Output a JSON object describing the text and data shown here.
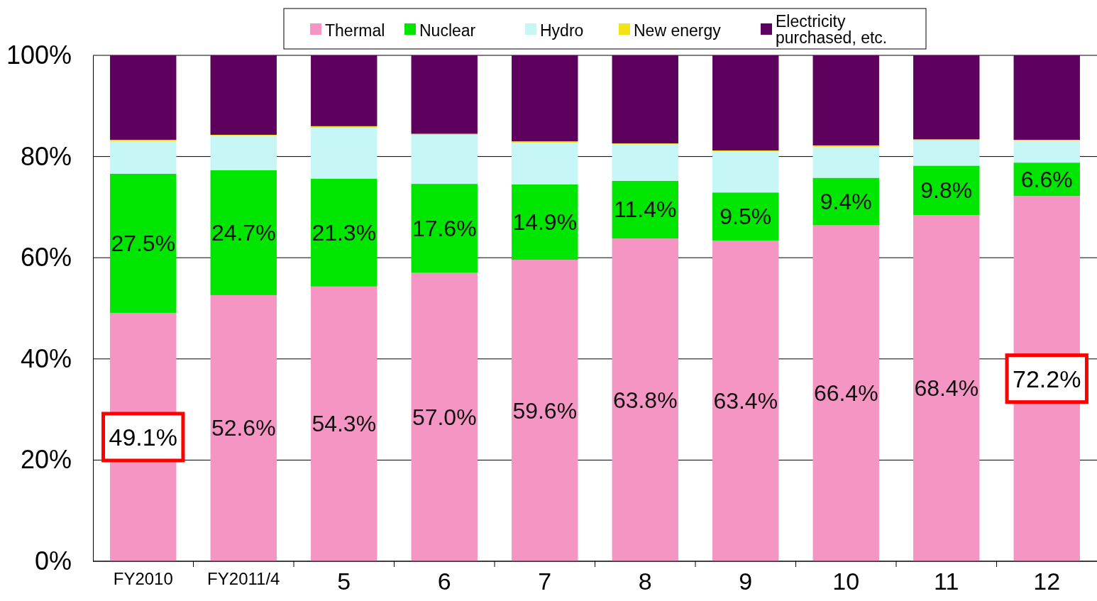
{
  "chart_data": {
    "type": "bar",
    "stacked": true,
    "categories": [
      "FY2010",
      "FY2011/4",
      "5",
      "6",
      "7",
      "8",
      "9",
      "10",
      "11",
      "12"
    ],
    "series": [
      {
        "name": "Thermal",
        "color": "#f595c4",
        "values": [
          49.1,
          52.6,
          54.3,
          57.0,
          59.6,
          63.8,
          63.4,
          66.4,
          68.4,
          72.2
        ],
        "value_labels": [
          null,
          "52.6%",
          "54.3%",
          "57.0%",
          "59.6%",
          "63.8%",
          "63.4%",
          "66.4%",
          "68.4%",
          null
        ]
      },
      {
        "name": "Nuclear",
        "color": "#00e600",
        "values": [
          27.5,
          24.7,
          21.3,
          17.6,
          14.9,
          11.4,
          9.5,
          9.4,
          9.8,
          6.6
        ],
        "value_labels": [
          "27.5%",
          "24.7%",
          "21.3%",
          "17.6%",
          "14.9%",
          "11.4%",
          "9.5%",
          "9.4%",
          "9.8%",
          "6.6%"
        ]
      },
      {
        "name": "Hydro",
        "color": "#c6f6f6",
        "values": [
          6.4,
          6.8,
          10.1,
          9.7,
          8.2,
          7.2,
          8.1,
          6.1,
          5.0,
          4.3
        ]
      },
      {
        "name": "New energy",
        "color": "#f2e21a",
        "values": [
          0.3,
          0.2,
          0.3,
          0.2,
          0.3,
          0.2,
          0.2,
          0.3,
          0.2,
          0.2
        ]
      },
      {
        "name": "Electricity purchased, etc.",
        "color": "#5e005e",
        "values": [
          16.7,
          15.7,
          14.0,
          15.5,
          17.0,
          17.4,
          18.8,
          17.8,
          16.6,
          16.7
        ]
      }
    ],
    "ylim": [
      0,
      100
    ],
    "yticks": [
      {
        "value": 0,
        "label": "0%"
      },
      {
        "value": 20,
        "label": "20%"
      },
      {
        "value": 40,
        "label": "40%"
      },
      {
        "value": 60,
        "label": "60%"
      },
      {
        "value": 80,
        "label": "80%"
      },
      {
        "value": 100,
        "label": "100%"
      }
    ],
    "grid": "y",
    "legend": "top",
    "annotations": [
      "49.1%",
      "72.2%"
    ]
  }
}
